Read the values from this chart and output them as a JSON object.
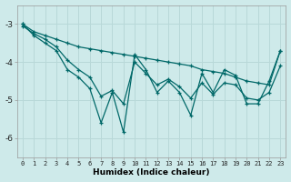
{
  "xlabel": "Humidex (Indice chaleur)",
  "ylabel": "",
  "background_color": "#ceeaea",
  "grid_color": "#b8d8d8",
  "line_color": "#006868",
  "xlim": [
    -0.5,
    23.5
  ],
  "ylim": [
    -6.5,
    -2.5
  ],
  "yticks": [
    -6,
    -5,
    -4,
    -3
  ],
  "xticks": [
    0,
    1,
    2,
    3,
    4,
    5,
    6,
    7,
    8,
    9,
    10,
    11,
    12,
    13,
    14,
    15,
    16,
    17,
    18,
    19,
    20,
    21,
    22,
    23
  ],
  "line1_x": [
    0,
    1,
    2,
    3,
    4,
    5,
    6,
    7,
    8,
    9,
    10,
    11,
    12,
    13,
    14,
    15,
    16,
    17,
    18,
    19,
    20,
    21,
    22,
    23
  ],
  "line1_y": [
    -3.0,
    -3.2,
    -3.3,
    -3.4,
    -3.5,
    -3.6,
    -3.65,
    -3.7,
    -3.75,
    -3.8,
    -3.85,
    -3.9,
    -3.95,
    -4.0,
    -4.05,
    -4.1,
    -4.2,
    -4.25,
    -4.3,
    -4.4,
    -4.5,
    -4.55,
    -4.6,
    -3.7
  ],
  "line2_x": [
    0,
    1,
    2,
    3,
    4,
    5,
    6,
    7,
    8,
    9,
    10,
    11,
    12,
    13,
    14,
    15,
    16,
    17,
    18,
    19,
    20,
    21,
    22,
    23
  ],
  "line2_y": [
    -3.0,
    -3.3,
    -3.5,
    -3.7,
    -4.2,
    -4.4,
    -4.7,
    -5.6,
    -4.8,
    -5.85,
    -3.8,
    -4.2,
    -4.8,
    -4.5,
    -4.8,
    -5.4,
    -4.3,
    -4.8,
    -4.2,
    -4.35,
    -5.1,
    -5.1,
    -4.5,
    -3.7
  ],
  "line3_x": [
    0,
    1,
    2,
    3,
    4,
    5,
    6,
    7,
    8,
    9,
    10,
    11,
    12,
    13,
    14,
    15,
    16,
    17,
    18,
    19,
    20,
    21,
    22,
    23
  ],
  "line3_y": [
    -3.05,
    -3.25,
    -3.4,
    -3.6,
    -3.95,
    -4.2,
    -4.4,
    -4.9,
    -4.75,
    -5.1,
    -4.0,
    -4.3,
    -4.6,
    -4.45,
    -4.65,
    -4.95,
    -4.55,
    -4.85,
    -4.55,
    -4.6,
    -4.95,
    -5.0,
    -4.8,
    -4.1
  ]
}
